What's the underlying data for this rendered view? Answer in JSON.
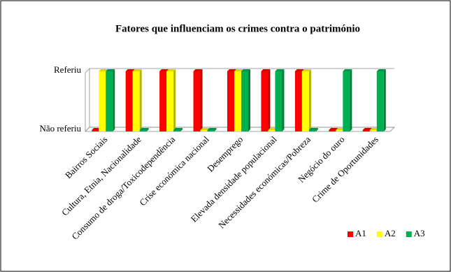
{
  "chart_data": {
    "type": "bar3d",
    "title": "Fatores que influenciam os crimes contra o património",
    "categories": [
      "Bairros Sociais",
      "Cultura, Etnia, Nacionalidade",
      "Consumo de droga/Toxicodependência",
      "Crise económica nacional",
      "Desemprego",
      "Elevada densidade populacional",
      "Necessidades económicas/Pobreza",
      "Negócio do ouro",
      "Crime de Oportunidades"
    ],
    "series": [
      {
        "name": "A1",
        "color": "#ff0000",
        "values": [
          0,
          1,
          1,
          1,
          1,
          1,
          1,
          0,
          0
        ]
      },
      {
        "name": "A2",
        "color": "#ffff00",
        "values": [
          1,
          1,
          1,
          0,
          1,
          0,
          1,
          0,
          0
        ]
      },
      {
        "name": "A3",
        "color": "#00b050",
        "values": [
          1,
          0,
          0,
          0,
          1,
          1,
          0,
          1,
          1
        ]
      }
    ],
    "ylim": [
      0,
      1
    ],
    "yticks": [
      {
        "value": 0,
        "label": "Não referiu"
      },
      {
        "value": 1,
        "label": "Referiu"
      }
    ],
    "grid": true,
    "legend": "bottom-right"
  }
}
